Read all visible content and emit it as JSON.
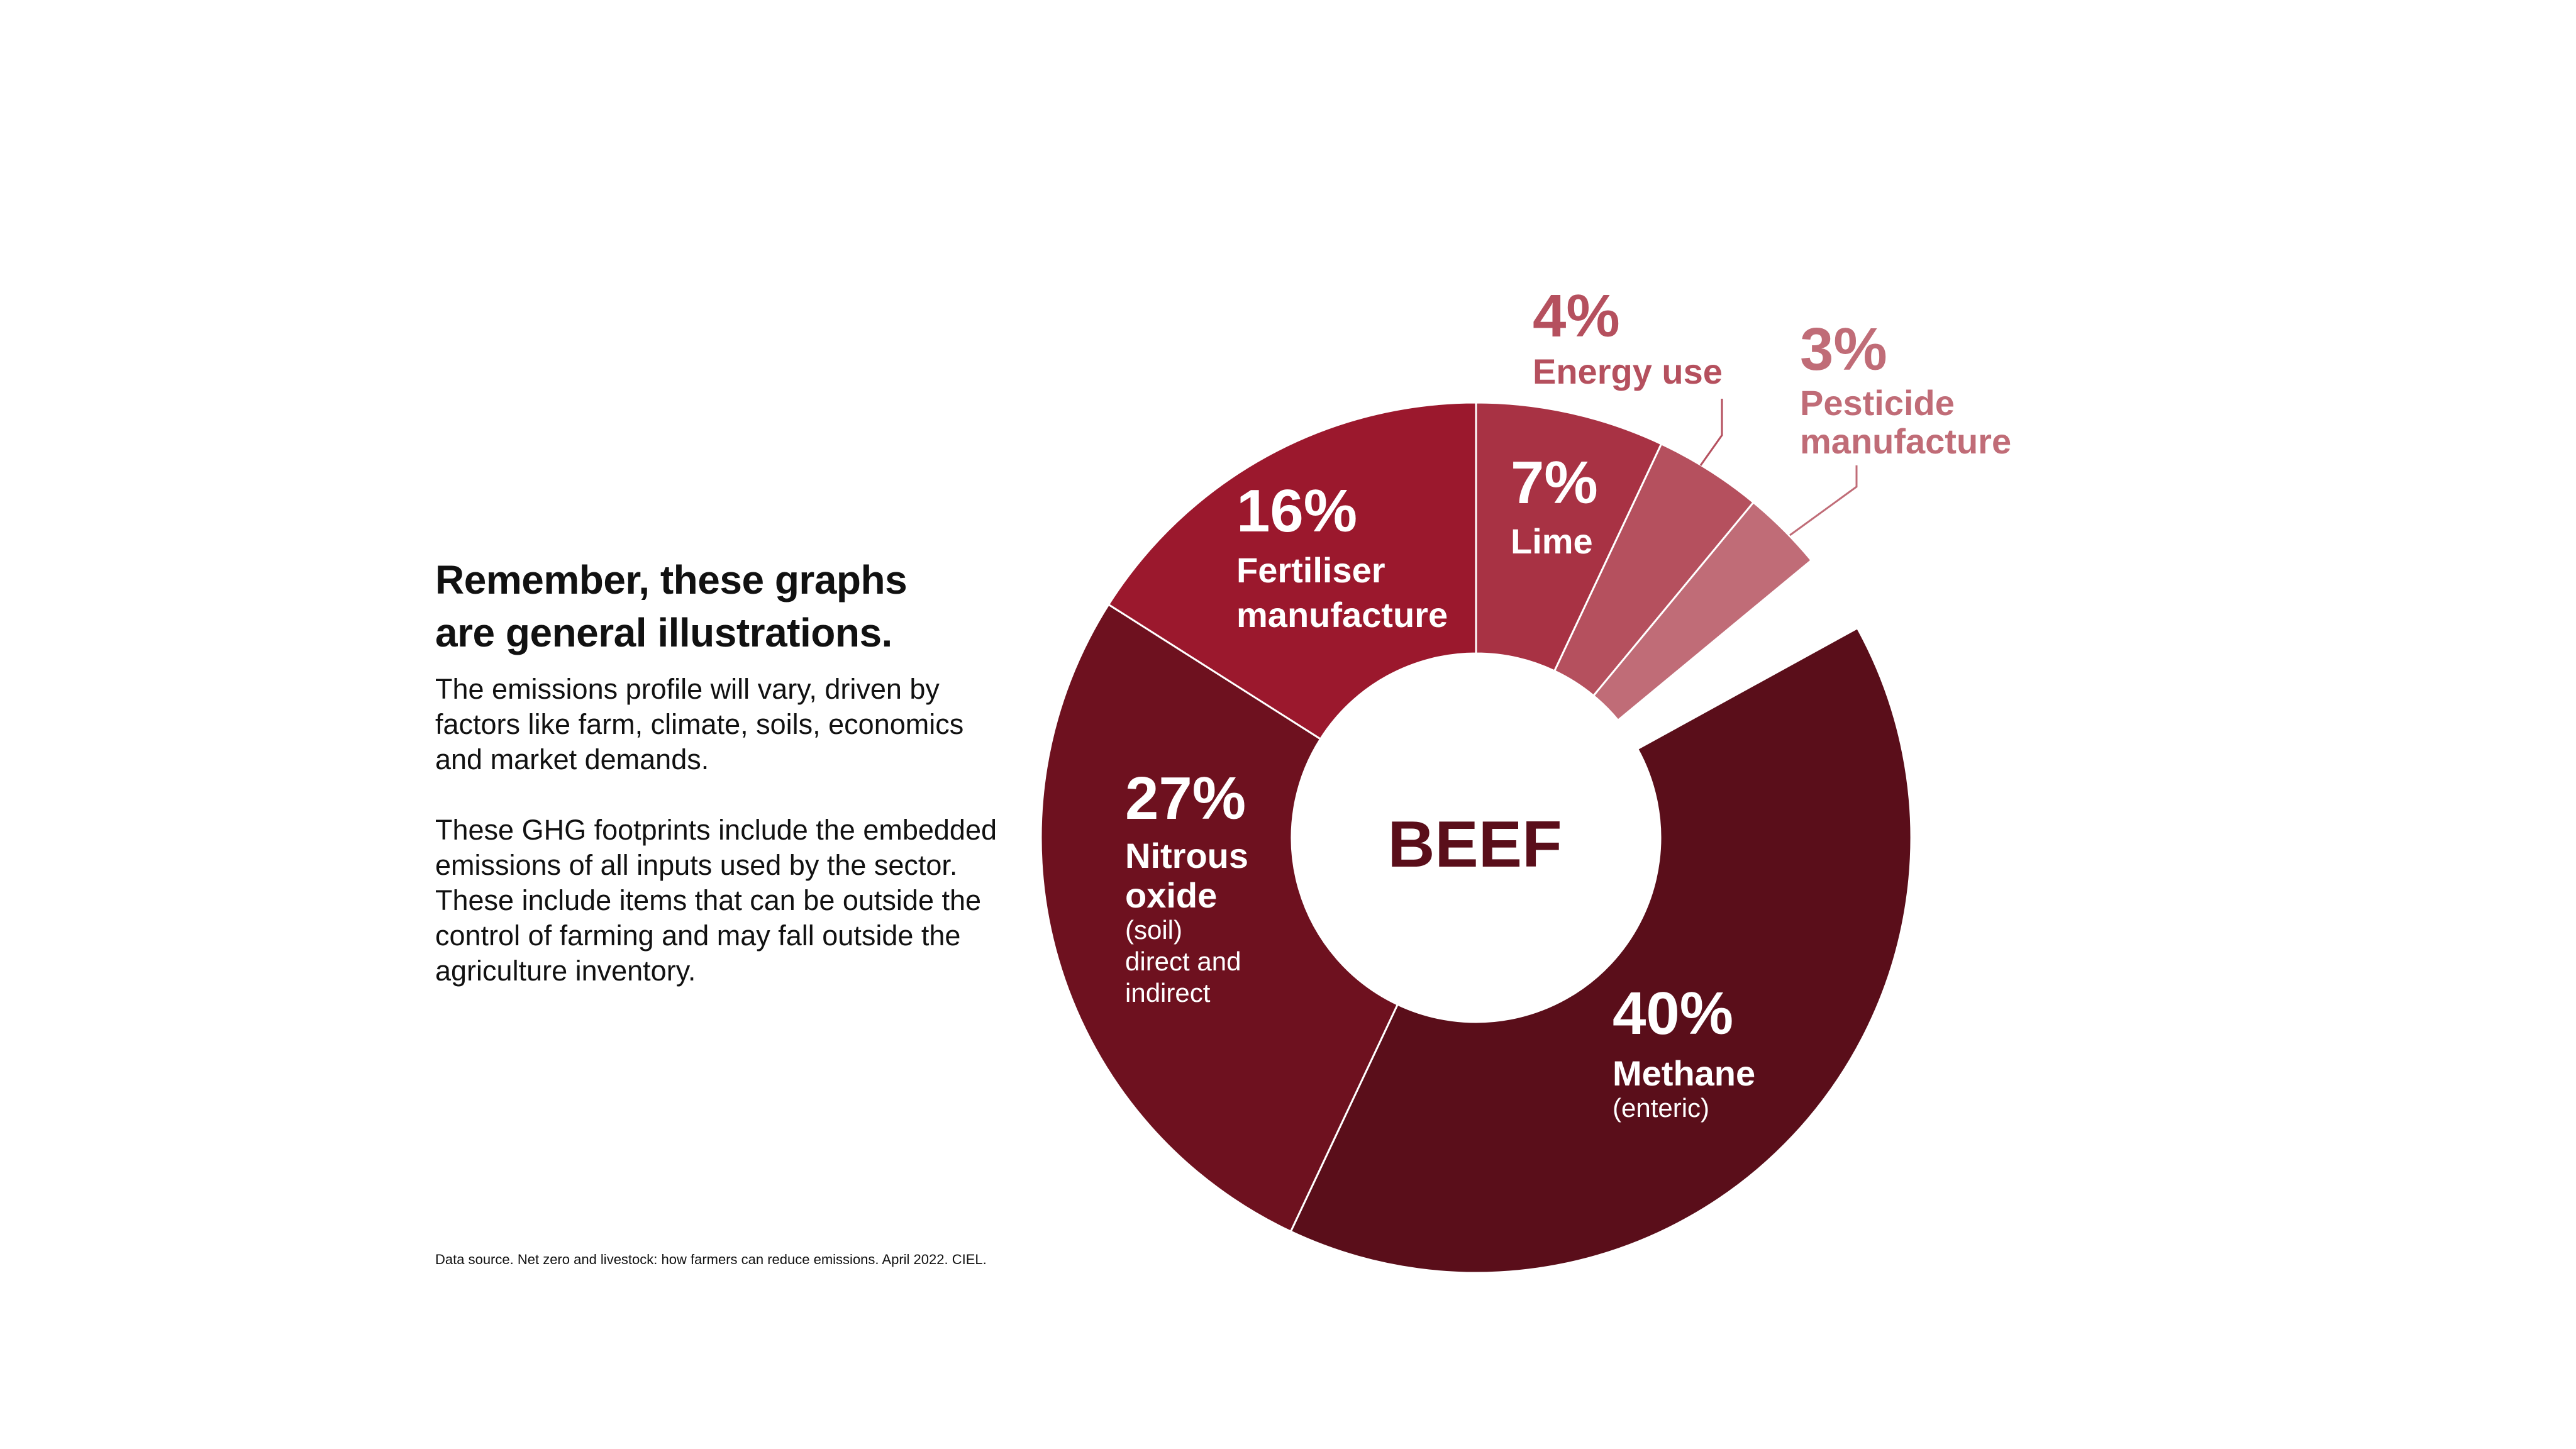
{
  "text": {
    "heading_line1": "Remember, these graphs",
    "heading_line2": "are general illustrations.",
    "para1": "The emissions profile will vary, driven by factors like farm, climate, soils, economics and market demands.",
    "para2": "These GHG footprints include the embedded emissions of all inputs used by the sector. These include items that can be outside the control of farming and may fall outside the agriculture inventory.",
    "footer": "Data source. Net zero and livestock: how farmers can reduce emissions. April 2022. CIEL."
  },
  "chart_data": {
    "type": "pie",
    "title": "BEEF",
    "unit": "%",
    "slices": [
      {
        "name": "Lime",
        "pct_label": "7%",
        "label": [
          "Lime"
        ],
        "sub": [],
        "value": 7,
        "color": "#a83244",
        "label_color": "#ffffff"
      },
      {
        "name": "Energy use",
        "pct_label": "4%",
        "label": [
          "Energy use"
        ],
        "sub": [],
        "value": 4,
        "color": "#b5505e",
        "label_color": "#b5505e"
      },
      {
        "name": "Pesticide manufacture",
        "pct_label": "3%",
        "label": [
          "Pesticide",
          "manufacture"
        ],
        "sub": [],
        "value": 3,
        "color": "#c06c77",
        "label_color": "#c06c77"
      },
      {
        "name": "Methane (enteric)",
        "pct_label": "40%",
        "label": [
          "Methane"
        ],
        "sub": [
          "(enteric)"
        ],
        "value": 40,
        "color": "#5a0e1a",
        "label_color": "#ffffff"
      },
      {
        "name": "Nitrous oxide (soil) direct and indirect",
        "pct_label": "27%",
        "label": [
          "Nitrous",
          "oxide"
        ],
        "sub": [
          "(soil)",
          "direct and",
          "indirect"
        ],
        "value": 27,
        "color": "#6e111f",
        "label_color": "#ffffff"
      },
      {
        "name": "Fertiliser manufacture",
        "pct_label": "16%",
        "label": [
          "Fertiliser",
          "manufacture"
        ],
        "sub": [],
        "value": 16,
        "color": "#9b182d",
        "label_color": "#ffffff"
      }
    ],
    "center_label_color": "#5a0e1a"
  }
}
